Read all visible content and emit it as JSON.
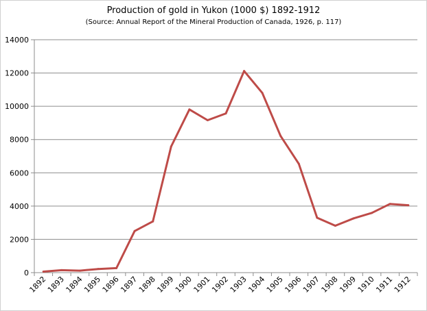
{
  "chart_data": {
    "type": "line",
    "title": "Production of gold in Yukon  (1000 $) 1892-1912",
    "subtitle": "(Source: Annual Report of the Mineral Production  of Canada, 1926, p. 117)",
    "xlabel": "",
    "ylabel": "",
    "categories": [
      "1892",
      "1893",
      "1894",
      "1895",
      "1896",
      "1897",
      "1898",
      "1899",
      "1900",
      "1901",
      "1902",
      "1903",
      "1904",
      "1905",
      "1906",
      "1907",
      "1908",
      "1909",
      "1910",
      "1911",
      "1912"
    ],
    "series": [
      {
        "values": [
          60,
          150,
          120,
          220,
          270,
          2500,
          3080,
          7580,
          9810,
          9160,
          9570,
          12120,
          10800,
          8220,
          6540,
          3300,
          2820,
          3260,
          3590,
          4130,
          4050
        ]
      }
    ],
    "ylim": [
      0,
      14000
    ],
    "yticks": [
      0,
      2000,
      4000,
      6000,
      8000,
      10000,
      12000,
      14000
    ],
    "grid": true,
    "legend": "none",
    "line_color": "#be4b48",
    "grid_color": "#8c8c8c"
  }
}
